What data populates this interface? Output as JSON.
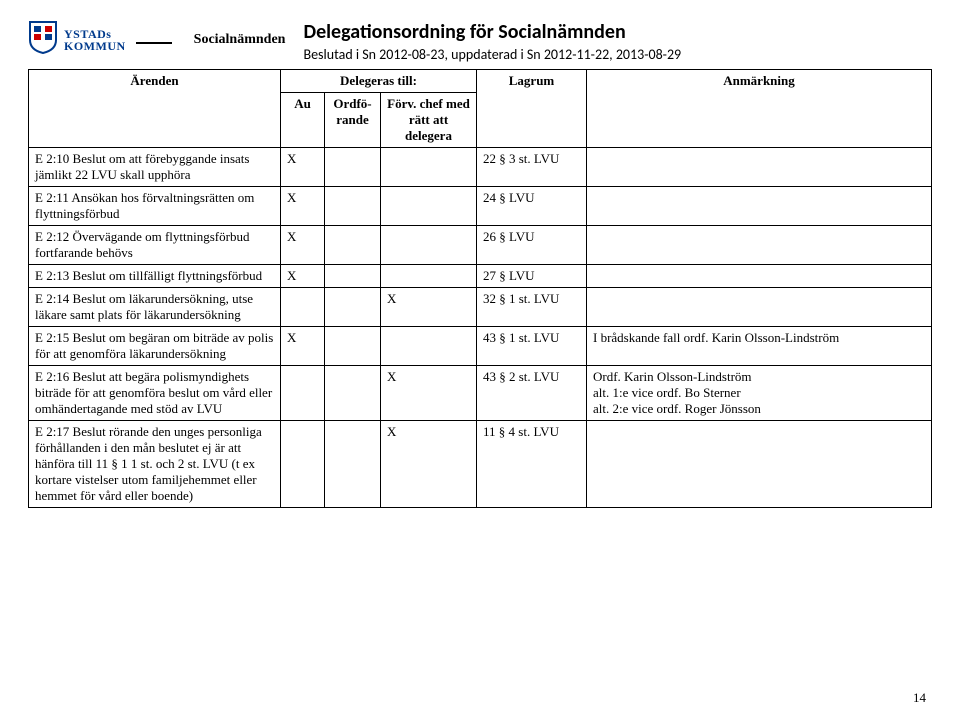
{
  "logo": {
    "line1": "YSTADs",
    "line2": "KOMMUN"
  },
  "department": "Socialnämnden",
  "title": "Delegationsordning för Socialnämnden",
  "subtitle": "Beslutad i Sn 2012-08-23, uppdaterad i Sn 2012-11-22, 2013-08-29",
  "header": {
    "arenden": "Ärenden",
    "delegeras": "Delegeras till:",
    "au": "Au",
    "ordf": "Ordfö-rande",
    "chef": "Förv. chef med rätt att delegera",
    "lagrum": "Lagrum",
    "anm": "Anmärkning"
  },
  "rows": [
    {
      "arend": "E 2:10 Beslut om att förebyggande insats jämlikt 22 LVU skall upphöra",
      "au": "X",
      "ordf": "",
      "chef": "",
      "lag": "22 § 3 st. LVU",
      "anm": ""
    },
    {
      "arend": "E 2:11 Ansökan hos förvaltningsrätten om flyttningsförbud",
      "au": "X",
      "ordf": "",
      "chef": "",
      "lag": "24 § LVU",
      "anm": ""
    },
    {
      "arend": "E 2:12 Övervägande om flyttningsförbud fortfarande behövs",
      "au": "X",
      "ordf": "",
      "chef": "",
      "lag": "26 § LVU",
      "anm": ""
    },
    {
      "arend": "E 2:13 Beslut om tillfälligt flyttningsförbud",
      "au": "X",
      "ordf": "",
      "chef": "",
      "lag": "27 § LVU",
      "anm": ""
    },
    {
      "arend": "E 2:14 Beslut om läkarundersökning, utse läkare samt plats för läkarundersökning",
      "au": "",
      "ordf": "",
      "chef": "X",
      "lag": "32 § 1 st. LVU",
      "anm": ""
    },
    {
      "arend": "E 2:15 Beslut om begäran om biträde av polis för att genomföra läkarundersökning",
      "au": "X",
      "ordf": "",
      "chef": "",
      "lag": "43 § 1 st. LVU",
      "anm": "I brådskande fall ordf. Karin Olsson-Lindström"
    },
    {
      "arend": "E 2:16 Beslut att begära polismyndighets biträde för att genomföra beslut om vård eller omhändertagande med stöd av LVU",
      "au": "",
      "ordf": "",
      "chef": "X",
      "lag": "43 § 2 st. LVU",
      "anm": "Ordf. Karin Olsson-Lindström\nalt. 1:e vice ordf. Bo Sterner\nalt. 2:e vice ordf. Roger Jönsson"
    },
    {
      "arend": "E 2:17 Beslut rörande den unges personliga förhållanden i den mån beslutet ej är att hänföra till 11 § 1 1 st. och 2 st. LVU (t ex kortare vistelser utom familjehemmet eller hemmet för vård eller boende)",
      "au": "",
      "ordf": "",
      "chef": "X",
      "lag": "11 § 4 st. LVU",
      "anm": ""
    }
  ],
  "page_number": "14",
  "style": {
    "page_bg": "#ffffff",
    "text_color": "#000000",
    "logo_blue": "#003a8c",
    "border_color": "#000000",
    "body_font": "Times New Roman",
    "heading_font": "Calibri"
  }
}
